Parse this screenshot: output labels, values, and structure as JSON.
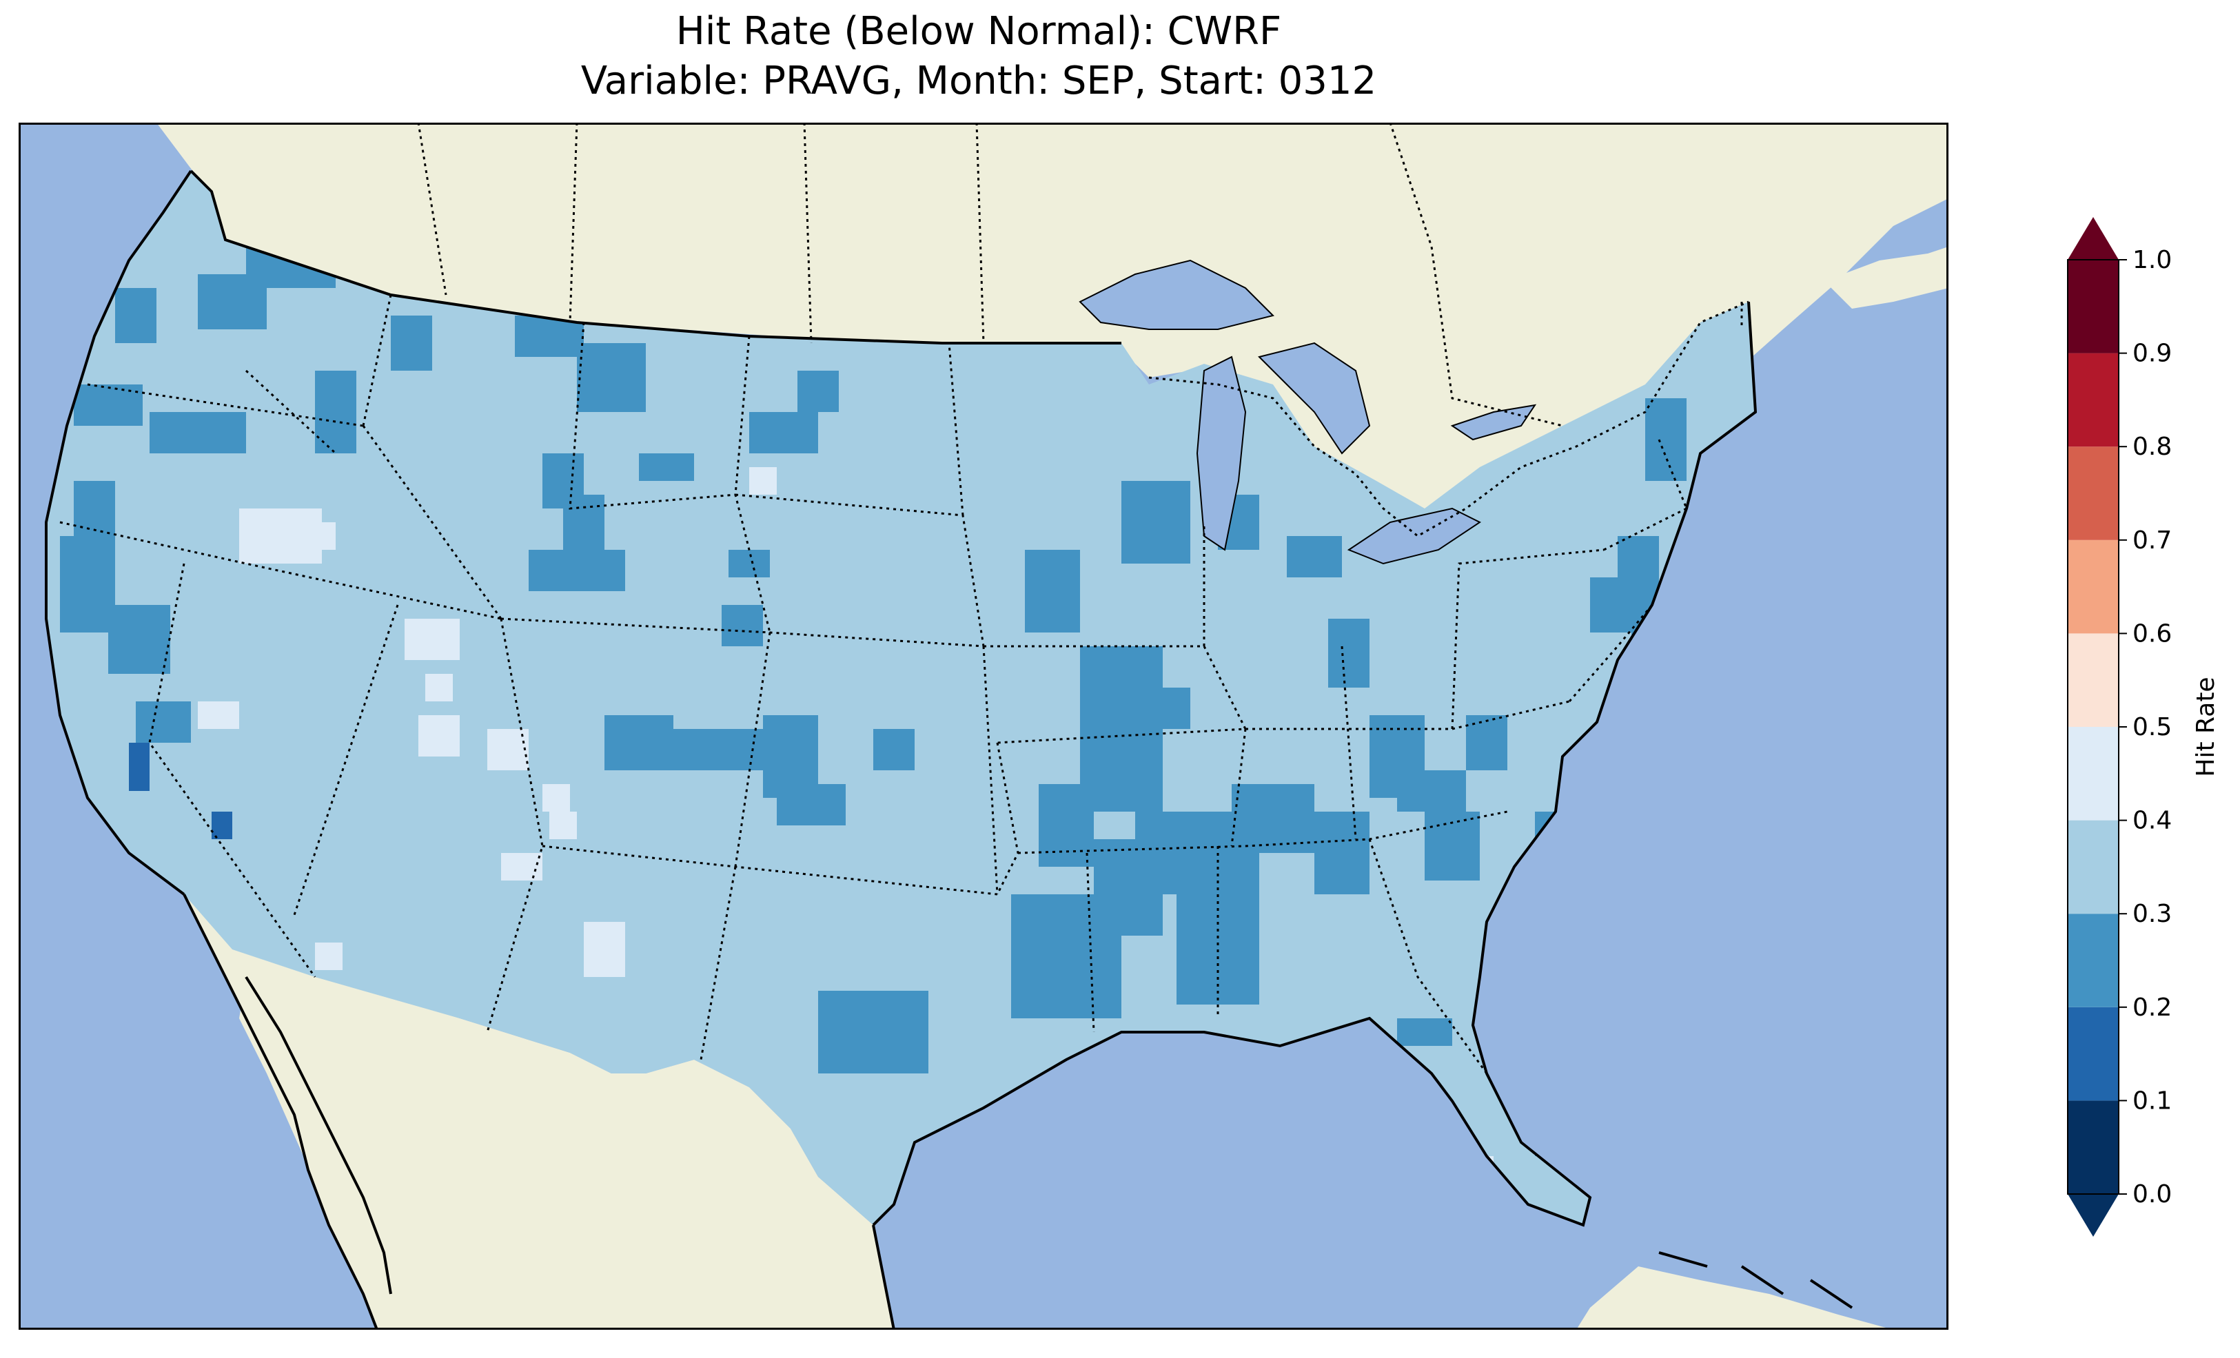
{
  "title": {
    "line1": "Hit Rate (Below Normal): CWRF",
    "line2": "Variable: PRAVG, Month: SEP, Start: 0312"
  },
  "map": {
    "projection": "Lambert Conformal (CONUS)",
    "colors": {
      "ocean": "#97b6e1",
      "land": "#efefdb",
      "lakes": "#97b6e1",
      "coastline": "#000000",
      "borders": "#000000"
    },
    "field": {
      "variable": "PRAVG",
      "metric": "Hit Rate (Below Normal)",
      "dominant_class": "0.3-0.4",
      "secondary_class": "0.2-0.3",
      "notes_visible": [
        "most of CONUS in 0.3-0.4 band",
        "patches of 0.2-0.3 over Mississippi valley, Great Lakes, Texas, Pacific Northwest",
        "small pockets of 0.4-0.5 in Nevada/Utah",
        "isolated 0.1-0.2 cells in California"
      ]
    }
  },
  "colorbar": {
    "label": "Hit Rate",
    "ticks": [
      "0.0",
      "0.1",
      "0.2",
      "0.3",
      "0.4",
      "0.5",
      "0.6",
      "0.7",
      "0.8",
      "0.9",
      "1.0"
    ],
    "bins": [
      {
        "range": [
          0.0,
          0.1
        ],
        "color": "#053061"
      },
      {
        "range": [
          0.1,
          0.2
        ],
        "color": "#2166ac"
      },
      {
        "range": [
          0.2,
          0.3
        ],
        "color": "#4393c3"
      },
      {
        "range": [
          0.3,
          0.4
        ],
        "color": "#a6cee3"
      },
      {
        "range": [
          0.4,
          0.5
        ],
        "color": "#deebf7"
      },
      {
        "range": [
          0.5,
          0.6
        ],
        "color": "#fbe3d6"
      },
      {
        "range": [
          0.6,
          0.7
        ],
        "color": "#f4a582"
      },
      {
        "range": [
          0.7,
          0.8
        ],
        "color": "#d6604d"
      },
      {
        "range": [
          0.8,
          0.9
        ],
        "color": "#b2182b"
      },
      {
        "range": [
          0.9,
          1.0
        ],
        "color": "#67001f"
      }
    ],
    "extend_low_color": "#053061",
    "extend_high_color": "#67001f"
  }
}
